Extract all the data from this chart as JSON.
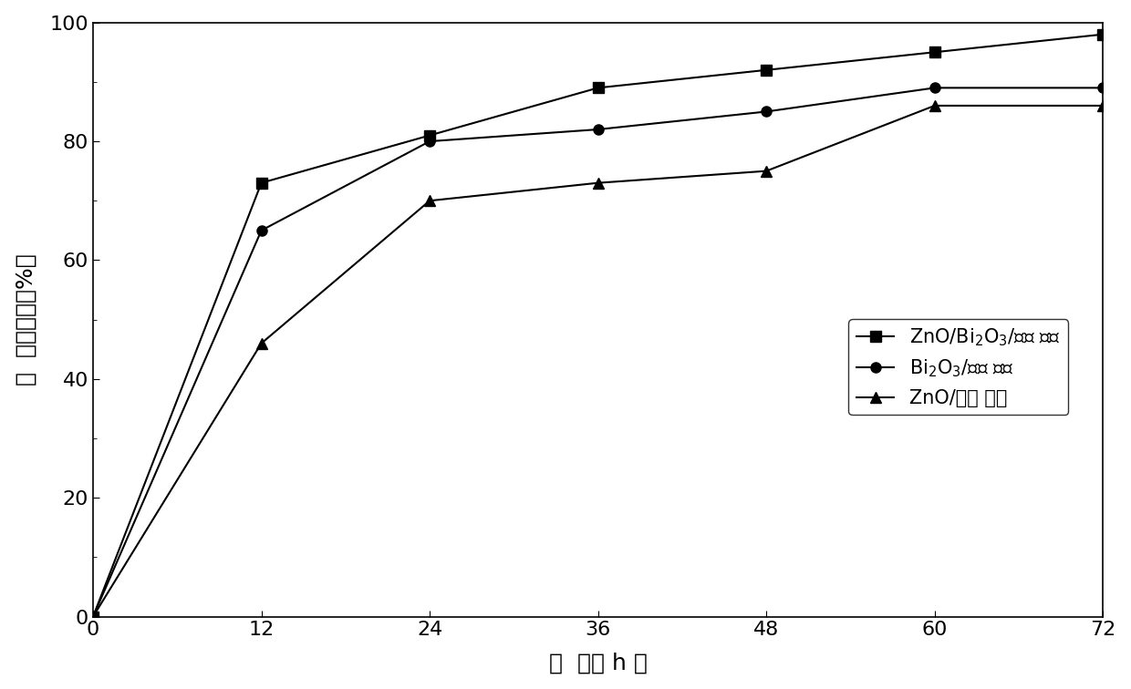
{
  "x": [
    0,
    12,
    24,
    36,
    48,
    60,
    72
  ],
  "series": [
    {
      "label_parts": [
        "ZnO/Bi$_2$O$_3$/玻璃 纤维"
      ],
      "y": [
        0,
        73,
        81,
        89,
        92,
        95,
        98
      ],
      "marker": "s",
      "color": "#000000"
    },
    {
      "label_parts": [
        "Bi$_2$O$_3$/玻璃 纤维"
      ],
      "y": [
        0,
        65,
        80,
        82,
        85,
        89,
        89
      ],
      "marker": "o",
      "color": "#000000"
    },
    {
      "label_parts": [
        "ZnO/玻璃 纤维"
      ],
      "y": [
        0,
        46,
        70,
        73,
        75,
        86,
        86
      ],
      "marker": "^",
      "color": "#000000"
    }
  ],
  "xlabel": "时  间（ h ）",
  "ylabel": "甲  醇降解率（%）",
  "xlim": [
    0,
    72
  ],
  "ylim": [
    0,
    100
  ],
  "xticks": [
    0,
    12,
    24,
    36,
    48,
    60,
    72
  ],
  "yticks": [
    0,
    20,
    40,
    60,
    80,
    100
  ],
  "background_color": "#ffffff",
  "line_width": 1.5,
  "marker_size": 8,
  "font_size": 18,
  "tick_font_size": 16,
  "legend_font_size": 15
}
